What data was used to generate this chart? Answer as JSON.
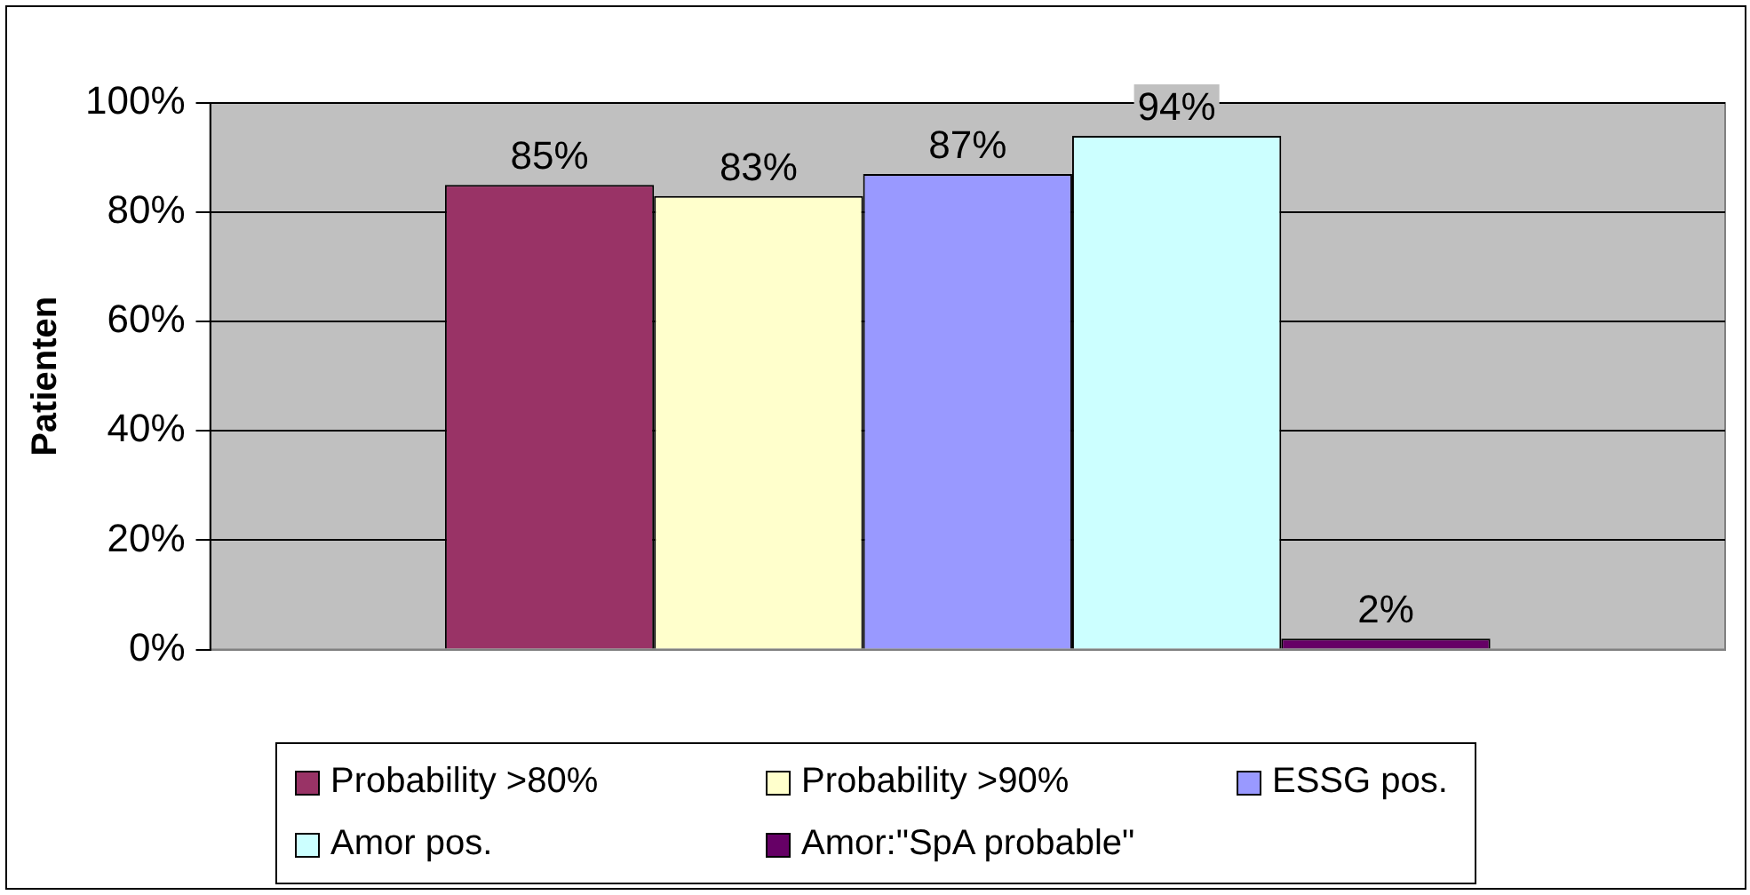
{
  "chart_data": {
    "type": "bar",
    "ylabel": "Patienten",
    "categories": [
      null
    ],
    "series": [
      {
        "name": "Probability >80%",
        "color": "#993366",
        "values": [
          85
        ]
      },
      {
        "name": "Probability >90%",
        "color": "#ffffcc",
        "values": [
          83
        ]
      },
      {
        "name": "ESSG pos.",
        "color": "#9999ff",
        "values": [
          87
        ]
      },
      {
        "name": "Amor pos.",
        "color": "#ccffff",
        "values": [
          94
        ]
      },
      {
        "name": "Amor:\"SpA probable\"",
        "color": "#660066",
        "values": [
          2
        ]
      }
    ],
    "ylim": [
      0,
      100
    ],
    "yticks": [
      {
        "value": 0,
        "label": "0%"
      },
      {
        "value": 20,
        "label": "20%"
      },
      {
        "value": 40,
        "label": "40%"
      },
      {
        "value": 60,
        "label": "60%"
      },
      {
        "value": 80,
        "label": "80%"
      },
      {
        "value": 100,
        "label": "100%"
      }
    ],
    "value_labels": [
      "85%",
      "83%",
      "87%",
      "94%",
      "2%"
    ],
    "grid": "y",
    "legend": "bottom"
  }
}
